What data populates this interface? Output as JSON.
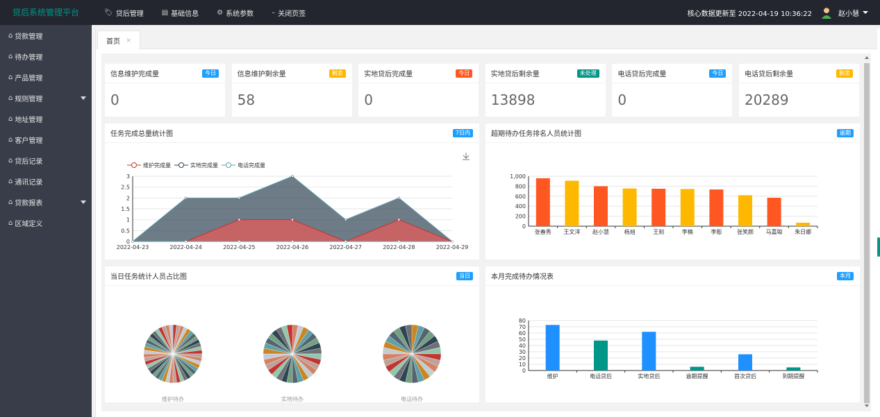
{
  "app": {
    "title": "贷后系统管理平台"
  },
  "topnav": [
    {
      "icon": "tag-icon",
      "glyph": "🏷",
      "label": "贷后管理"
    },
    {
      "icon": "list-icon",
      "glyph": "▤",
      "label": "基础信息"
    },
    {
      "icon": "gear-icon",
      "glyph": "⚙",
      "label": "系统参数"
    },
    {
      "icon": "dash-icon",
      "glyph": "–",
      "label": "关闭页签"
    }
  ],
  "header": {
    "update_text": "核心数据更新至 2022-04-19 10:36:22",
    "user_name": "赵小慧"
  },
  "sidebar": {
    "items": [
      {
        "label": "贷款管理",
        "expand": false
      },
      {
        "label": "待办管理",
        "expand": false
      },
      {
        "label": "产品管理",
        "expand": false
      },
      {
        "label": "规则管理",
        "expand": true
      },
      {
        "label": "地址管理",
        "expand": false
      },
      {
        "label": "客户管理",
        "expand": false
      },
      {
        "label": "贷后记录",
        "expand": false
      },
      {
        "label": "通讯记录",
        "expand": false
      },
      {
        "label": "贷款报表",
        "expand": true
      },
      {
        "label": "区域定义",
        "expand": false
      }
    ]
  },
  "tabs": [
    {
      "label": "首页",
      "close": "×"
    }
  ],
  "stats": [
    {
      "title": "信息维护完成量",
      "badge": "今日",
      "color": "#1e9fff",
      "value": "0"
    },
    {
      "title": "信息维护剩余量",
      "badge": "剩余",
      "color": "#ffb800",
      "value": "58"
    },
    {
      "title": "实地贷后完成量",
      "badge": "今日",
      "color": "#ff5722",
      "value": "0"
    },
    {
      "title": "实地贷后剩余量",
      "badge": "未处理",
      "color": "#009688",
      "value": "13898"
    },
    {
      "title": "电话贷后完成量",
      "badge": "今日",
      "color": "#1e9fff",
      "value": "0"
    },
    {
      "title": "电话贷后剩余量",
      "badge": "剩余",
      "color": "#ffb800",
      "value": "20289"
    }
  ],
  "panels": {
    "task_total": {
      "title": "任务完成总量统计图",
      "badge": "7日内"
    },
    "overdue_rank": {
      "title": "超期待办任务排名人员统计图",
      "badge": "逾期"
    },
    "daily_ratio": {
      "title": "当日任务统计人员占比图",
      "badge": "当日"
    },
    "monthly": {
      "title": "本月完成待办情况表",
      "badge": "本月"
    }
  },
  "chart_data": [
    {
      "type": "area",
      "x": [
        "2022-04-23",
        "2022-04-24",
        "2022-04-25",
        "2022-04-26",
        "2022-04-27",
        "2022-04-28",
        "2022-04-29"
      ],
      "series": [
        {
          "name": "维护完成量",
          "values": [
            0,
            0,
            1,
            1,
            0,
            1,
            0
          ],
          "color": "#c23531"
        },
        {
          "name": "实地完成量",
          "values": [
            0,
            2,
            2,
            3,
            1,
            2,
            0
          ],
          "color": "#2f4554"
        },
        {
          "name": "电话完成量",
          "values": [
            0,
            0,
            0,
            0,
            0,
            0,
            0
          ],
          "color": "#61a0a8"
        }
      ],
      "ylim": [
        0,
        3
      ],
      "yticks": [
        "0",
        "0.5",
        "1",
        "1.5",
        "2",
        "2.5",
        "3"
      ],
      "legend": "top-left"
    },
    {
      "type": "bar",
      "categories": [
        "张春秀",
        "王文洋",
        "赵小慧",
        "杨旭",
        "王刻",
        "李楠",
        "李彫",
        "张笑颜",
        "马嘉聪",
        "朱日娜"
      ],
      "values": [
        960,
        910,
        800,
        755,
        750,
        745,
        735,
        620,
        570,
        70
      ],
      "colors": [
        "#ff5722",
        "#ffb800",
        "#ff5722",
        "#ffb800",
        "#ff5722",
        "#ffb800",
        "#ff5722",
        "#ffb800",
        "#ff5722",
        "#ffb800"
      ],
      "ylim": [
        0,
        1000
      ],
      "yticks": [
        "0",
        "200",
        "400",
        "600",
        "800",
        "1,000"
      ]
    },
    {
      "type": "pie",
      "pies": [
        {
          "label": "维护待办",
          "slices": 48
        },
        {
          "label": "实地待办",
          "slices": 32
        },
        {
          "label": "电话待办",
          "slices": 28
        }
      ],
      "colors": [
        "#c23531",
        "#2f4554",
        "#61a0a8",
        "#d48265",
        "#91c7ae",
        "#749f83",
        "#ca8622",
        "#bda29a",
        "#6e7074",
        "#546570",
        "#c4ccd3"
      ]
    },
    {
      "type": "bar",
      "categories": [
        "维护",
        "电话贷后",
        "实地贷后",
        "逾期提醒",
        "首次贷后",
        "到期提醒"
      ],
      "values": [
        73,
        48,
        62,
        6,
        26,
        5
      ],
      "colors": [
        "#1e90ff",
        "#009688",
        "#1e90ff",
        "#009688",
        "#1e90ff",
        "#009688"
      ],
      "ylim": [
        0,
        80
      ],
      "yticks": [
        "0",
        "10",
        "20",
        "30",
        "40",
        "50",
        "60",
        "70",
        "80"
      ]
    }
  ]
}
